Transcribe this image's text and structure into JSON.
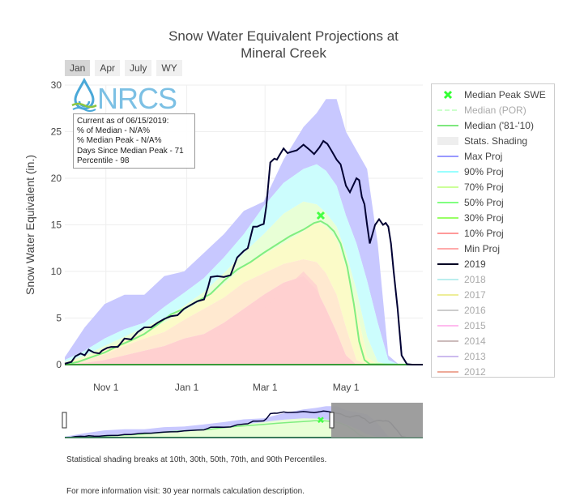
{
  "title_line1": "Snow Water Equivalent Projections at",
  "title_line2": "Mineral Creek",
  "range_buttons": [
    "Jan",
    "Apr",
    "July",
    "WY"
  ],
  "active_range": "Jan",
  "logo_text": "NRCS",
  "info_box": {
    "line1": "Current as of 06/15/2019:",
    "line2": "% of Median - N/A%",
    "line3": "% Median Peak - N/A%",
    "line4": "Days Since Median Peak - 71",
    "line5": "Percentile - 98"
  },
  "chart_data": {
    "type": "area",
    "title": "Snow Water Equivalent Projections at Mineral Creek",
    "ylabel": "Snow Water Equivalent (in.)",
    "xlabel": "",
    "ylim": [
      0,
      30
    ],
    "yticks": [
      0,
      5,
      10,
      15,
      20,
      25,
      30
    ],
    "xlim_day": [
      0,
      270
    ],
    "xtick_labels": [
      {
        "label": "Nov  1",
        "day": 31
      },
      {
        "label": "Jan  1",
        "day": 92
      },
      {
        "label": "Mar  1",
        "day": 151
      },
      {
        "label": "May  1",
        "day": 212
      }
    ],
    "median_peak": {
      "day": 193,
      "value": 16.0,
      "label": "Median Peak SWE"
    },
    "bands": {
      "days": [
        0,
        15,
        30,
        45,
        60,
        75,
        90,
        105,
        120,
        135,
        150,
        165,
        180,
        190,
        197,
        205,
        212,
        220,
        228,
        236,
        244,
        252,
        260
      ],
      "max": [
        0.8,
        4.0,
        6.5,
        7.5,
        7.5,
        9.5,
        10.0,
        12.0,
        14.0,
        16.5,
        17.5,
        22.0,
        25.5,
        27.0,
        28.5,
        28.5,
        25.0,
        23.0,
        21.0,
        13.0,
        1.0,
        0,
        0
      ],
      "p90": [
        0.5,
        1.5,
        2.8,
        3.8,
        4.5,
        6.2,
        7.7,
        9.3,
        11.5,
        14.0,
        17.0,
        19.5,
        21.0,
        21.5,
        20.8,
        19.2,
        16.0,
        13.0,
        9.0,
        4.5,
        0.5,
        0,
        0
      ],
      "p70": [
        0.3,
        1.0,
        2.0,
        3.0,
        4.0,
        5.0,
        6.3,
        7.8,
        9.8,
        12.0,
        14.0,
        16.2,
        17.5,
        17.2,
        16.3,
        14.8,
        12.0,
        8.0,
        3.0,
        0.3,
        0,
        0,
        0
      ],
      "p50": [
        0.2,
        0.8,
        1.6,
        2.6,
        3.5,
        4.5,
        5.7,
        7.0,
        8.6,
        10.5,
        11.8,
        13.0,
        14.3,
        15.4,
        14.8,
        13.5,
        10.5,
        6.0,
        0.8,
        0,
        0,
        0,
        0
      ],
      "p30": [
        0.1,
        0.5,
        1.1,
        2.0,
        2.8,
        3.5,
        4.8,
        6.0,
        7.2,
        8.8,
        9.8,
        10.8,
        11.3,
        11.0,
        9.8,
        7.5,
        4.0,
        0.5,
        0,
        0,
        0,
        0,
        0
      ],
      "p10": [
        0,
        0.2,
        0.5,
        1.0,
        1.5,
        2.0,
        2.8,
        3.3,
        4.5,
        6.0,
        7.5,
        8.8,
        9.5,
        8.0,
        6.0,
        3.5,
        1.0,
        0,
        0,
        0,
        0,
        0,
        0
      ],
      "min": [
        0,
        0,
        0.3,
        0.6,
        1.0,
        1.5,
        2.0,
        2.5,
        3.5,
        4.8,
        6.0,
        8.0,
        10.0,
        8.5,
        5.0,
        2.0,
        0.5,
        0,
        0,
        0,
        0,
        0,
        0
      ]
    },
    "median_8110": {
      "days": [
        0,
        10,
        20,
        30,
        40,
        50,
        60,
        70,
        80,
        90,
        100,
        110,
        120,
        130,
        140,
        150,
        160,
        170,
        180,
        188,
        193,
        198,
        203,
        208,
        213,
        218,
        222,
        226,
        230,
        260
      ],
      "values": [
        0,
        0.3,
        0.8,
        1.3,
        2.0,
        2.6,
        3.3,
        4.3,
        5.4,
        6.0,
        6.8,
        7.6,
        9.0,
        10.2,
        11.0,
        12.0,
        12.9,
        13.8,
        14.5,
        15.2,
        15.4,
        15.0,
        14.3,
        13.0,
        10.5,
        6.5,
        2.5,
        0.5,
        0.05,
        0
      ]
    },
    "series_2019": {
      "days": [
        0,
        5,
        8,
        12,
        15,
        18,
        22,
        26,
        28,
        32,
        35,
        40,
        45,
        50,
        55,
        60,
        65,
        70,
        75,
        80,
        85,
        90,
        95,
        100,
        105,
        108,
        110,
        115,
        120,
        125,
        130,
        135,
        138,
        142,
        145,
        148,
        150,
        152,
        155,
        158,
        160,
        162,
        165,
        168,
        170,
        175,
        180,
        185,
        188,
        192,
        195,
        198,
        201,
        205,
        208,
        212,
        215,
        220,
        222,
        224,
        226,
        228,
        230,
        232,
        234,
        237,
        240,
        242,
        244,
        246,
        248,
        251,
        254,
        258,
        262,
        270
      ],
      "values": [
        0.1,
        0.3,
        0.9,
        1.2,
        1.0,
        1.6,
        1.3,
        1.2,
        1.5,
        1.8,
        1.9,
        1.9,
        2.8,
        2.7,
        3.5,
        4.0,
        4.0,
        4.5,
        4.9,
        5.2,
        5.3,
        6.0,
        6.4,
        6.8,
        7.0,
        8.3,
        9.4,
        9.5,
        9.4,
        9.6,
        11.5,
        12.2,
        12.5,
        14.8,
        14.8,
        15.0,
        15.1,
        17.0,
        21.7,
        22.1,
        22.0,
        22.5,
        23.2,
        22.7,
        22.8,
        23.0,
        23.6,
        23.0,
        22.6,
        23.3,
        24.0,
        23.7,
        23.0,
        22.0,
        21.5,
        19.2,
        18.5,
        20.0,
        19.8,
        18.0,
        17.2,
        15.0,
        13.0,
        14.0,
        15.0,
        15.6,
        15.0,
        15.2,
        14.8,
        13.0,
        10.0,
        6.0,
        1.0,
        0.05,
        0,
        0
      ]
    },
    "legend": [
      {
        "name": "Median Peak SWE",
        "color": "#33ff33",
        "kind": "x",
        "visible": true
      },
      {
        "name": "Median (POR)",
        "color": "#ccffcc",
        "kind": "dash",
        "visible": false
      },
      {
        "name": "Median ('81-'10)",
        "color": "#7ee87e",
        "kind": "line",
        "visible": true
      },
      {
        "name": "Stats. Shading",
        "color": "#eeeeee",
        "kind": "fill",
        "visible": true
      },
      {
        "name": "Max Proj",
        "color": "#9999ff",
        "kind": "line",
        "visible": true
      },
      {
        "name": "90% Proj",
        "color": "#99ffff",
        "kind": "line",
        "visible": true
      },
      {
        "name": "70% Proj",
        "color": "#ccff99",
        "kind": "line",
        "visible": true
      },
      {
        "name": "50% Proj",
        "color": "#80ff80",
        "kind": "line",
        "visible": true
      },
      {
        "name": "30% Proj",
        "color": "#99ff66",
        "kind": "line",
        "visible": true
      },
      {
        "name": "10% Proj",
        "color": "#ff9999",
        "kind": "line",
        "visible": true
      },
      {
        "name": "Min Proj",
        "color": "#ffaaaa",
        "kind": "line",
        "visible": true
      },
      {
        "name": "2019",
        "color": "#000022",
        "kind": "line",
        "visible": true
      },
      {
        "name": "2018",
        "color": "#bbeeee",
        "kind": "line",
        "visible": false
      },
      {
        "name": "2017",
        "color": "#eeee99",
        "kind": "line",
        "visible": false
      },
      {
        "name": "2016",
        "color": "#cccccc",
        "kind": "line",
        "visible": false
      },
      {
        "name": "2015",
        "color": "#ffbbee",
        "kind": "line",
        "visible": false
      },
      {
        "name": "2014",
        "color": "#ccbbbb",
        "kind": "line",
        "visible": false
      },
      {
        "name": "2013",
        "color": "#ccbbee",
        "kind": "line",
        "visible": false
      },
      {
        "name": "2012",
        "color": "#eeaa99",
        "kind": "line",
        "visible": false
      }
    ],
    "colors": {
      "max_band": "#c8c8ff",
      "p90_band": "#ccfdfd",
      "p70_band": "#e8ffd6",
      "p50_band": "#fbfbc8",
      "p30_band": "#ffe9d0",
      "p10_band": "#ffd0d0",
      "median": "#80ee80",
      "series_2019": "#000033",
      "peak_marker": "#44ff44"
    }
  },
  "footnotes": {
    "shading": "Statistical shading breaks at 10th, 30th, 50th, 70th, and 90th Percentiles.",
    "info": "For more information visit: 30 year normals calculation description."
  }
}
